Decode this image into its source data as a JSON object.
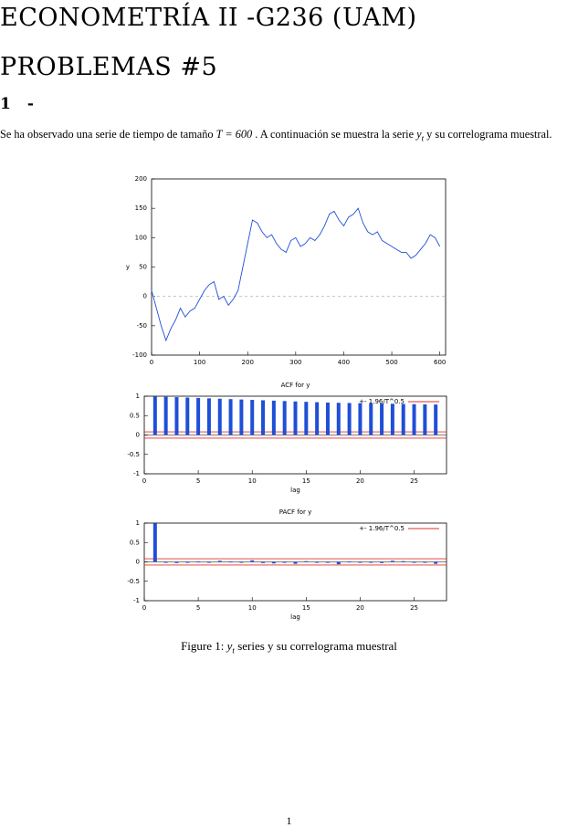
{
  "document": {
    "title": "ECONOMETRÍA II -G236 (UAM)",
    "subtitle": "PROBLEMAS #5",
    "section": {
      "number": "1",
      "title": "-"
    },
    "paragraph": [
      "Se ha observado una serie de tiempo de tamaño ",
      "T = 600",
      " . A continuación se muestra la serie ",
      "y",
      "t",
      " y su correlograma muestral."
    ],
    "caption": [
      "Figure 1: ",
      "y",
      "t",
      " series y su correlograma muestral"
    ],
    "page_number": "1"
  },
  "chart_data": [
    {
      "type": "line",
      "y_label": "y",
      "color": "#1f4fd6",
      "zero_line": true,
      "x": [
        0,
        10,
        20,
        30,
        40,
        50,
        60,
        70,
        80,
        90,
        100,
        110,
        120,
        130,
        140,
        150,
        160,
        170,
        180,
        190,
        200,
        210,
        220,
        230,
        240,
        250,
        260,
        270,
        280,
        290,
        300,
        310,
        320,
        330,
        340,
        350,
        360,
        370,
        380,
        390,
        400,
        410,
        420,
        430,
        440,
        450,
        460,
        470,
        480,
        490,
        500,
        510,
        520,
        530,
        540,
        550,
        560,
        570,
        580,
        590,
        600
      ],
      "values": [
        10,
        -20,
        -50,
        -75,
        -55,
        -40,
        -20,
        -35,
        -25,
        -20,
        -5,
        10,
        20,
        25,
        -5,
        0,
        -15,
        -5,
        10,
        50,
        90,
        130,
        125,
        110,
        100,
        105,
        90,
        80,
        75,
        95,
        100,
        85,
        90,
        100,
        95,
        105,
        120,
        140,
        145,
        130,
        120,
        135,
        140,
        150,
        125,
        110,
        105,
        110,
        95,
        90,
        85,
        80,
        75,
        75,
        65,
        70,
        80,
        90,
        105,
        100,
        85
      ],
      "xlim": [
        0,
        612
      ],
      "ylim": [
        -100,
        200
      ],
      "xticks": [
        0,
        100,
        200,
        300,
        400,
        500,
        600
      ],
      "yticks": [
        -100,
        -50,
        0,
        50,
        100,
        150,
        200
      ]
    },
    {
      "type": "bar",
      "title": "ACF for y",
      "x_label": "lag",
      "color": "#1f4fd6",
      "legend": "upper right",
      "band": {
        "label": "+- 1.96/T^0.5",
        "value": 0.08,
        "color": "#e0302a"
      },
      "categories": [
        1,
        2,
        3,
        4,
        5,
        6,
        7,
        8,
        9,
        10,
        11,
        12,
        13,
        14,
        15,
        16,
        17,
        18,
        19,
        20,
        21,
        22,
        23,
        24,
        25,
        26,
        27
      ],
      "values": [
        0.99,
        0.985,
        0.975,
        0.965,
        0.955,
        0.945,
        0.935,
        0.925,
        0.915,
        0.905,
        0.895,
        0.885,
        0.875,
        0.865,
        0.855,
        0.845,
        0.835,
        0.83,
        0.825,
        0.82,
        0.815,
        0.81,
        0.805,
        0.8,
        0.795,
        0.79,
        0.785
      ],
      "xlim": [
        0,
        28
      ],
      "ylim": [
        -1,
        1
      ],
      "xticks": [
        0,
        5,
        10,
        15,
        20,
        25
      ],
      "yticks": [
        -1,
        -0.5,
        0,
        0.5,
        1
      ]
    },
    {
      "type": "bar",
      "title": "PACF for y",
      "x_label": "lag",
      "color": "#1f4fd6",
      "legend": "upper right",
      "band": {
        "label": "+- 1.96/T^0.5",
        "value": 0.08,
        "color": "#e0302a"
      },
      "categories": [
        1,
        2,
        3,
        4,
        5,
        6,
        7,
        8,
        9,
        10,
        11,
        12,
        13,
        14,
        15,
        16,
        17,
        18,
        19,
        20,
        21,
        22,
        23,
        24,
        25,
        26,
        27
      ],
      "values": [
        0.99,
        -0.02,
        -0.03,
        -0.02,
        0.01,
        -0.02,
        0.03,
        0.01,
        -0.02,
        0.04,
        -0.03,
        -0.04,
        -0.02,
        -0.05,
        0.02,
        0,
        -0.01,
        -0.06,
        0.01,
        -0.01,
        0,
        -0.03,
        0.03,
        0.02,
        -0.01,
        0,
        -0.05
      ],
      "xlim": [
        0,
        28
      ],
      "ylim": [
        -1,
        1
      ],
      "xticks": [
        0,
        5,
        10,
        15,
        20,
        25
      ],
      "yticks": [
        -1,
        -0.5,
        0,
        0.5,
        1
      ]
    }
  ]
}
